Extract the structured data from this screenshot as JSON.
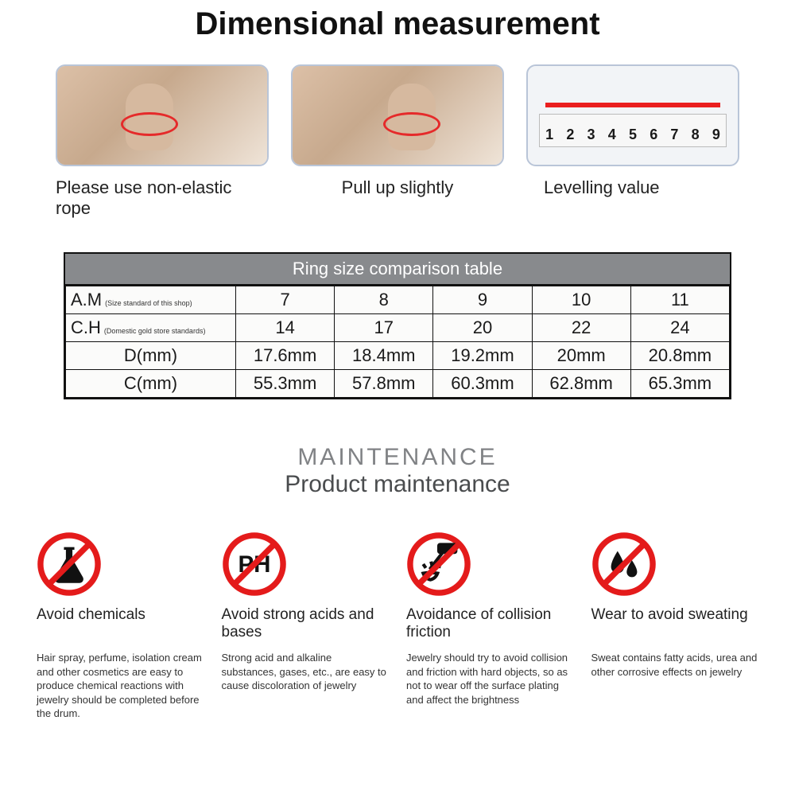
{
  "title": "Dimensional measurement",
  "steps": {
    "panel1_caption": "Please use non-elastic rope",
    "panel2_caption": "Pull up slightly",
    "panel3_caption": "Levelling value",
    "ruler_numbers": [
      "1",
      "2",
      "3",
      "4",
      "5",
      "6",
      "7",
      "8",
      "9"
    ],
    "panel_border_color": "#b9c5d8",
    "red_color": "#ea1f1f"
  },
  "table": {
    "title": "Ring size comparison table",
    "header_bg": "#888a8d",
    "cell_bg": "#fbfbfa",
    "border_color": "#111111",
    "col_width_first": "200px",
    "rows": [
      {
        "label": "A.M",
        "sublabel": "(Size standard of this shop)",
        "cells": [
          "7",
          "8",
          "9",
          "10",
          "11"
        ]
      },
      {
        "label": "C.H",
        "sublabel": "(Domestic gold store standards)",
        "cells": [
          "14",
          "17",
          "20",
          "22",
          "24"
        ]
      },
      {
        "label": "D(mm)",
        "sublabel": "",
        "cells": [
          "17.6mm",
          "18.4mm",
          "19.2mm",
          "20mm",
          "20.8mm"
        ]
      },
      {
        "label": "C(mm)",
        "sublabel": "",
        "cells": [
          "55.3mm",
          "57.8mm",
          "60.3mm",
          "62.8mm",
          "65.3mm"
        ]
      }
    ]
  },
  "maintenance": {
    "heading_small": "MAINTENANCE",
    "heading_large": "Product maintenance",
    "circle_stroke": "#e41b1b",
    "icon_color": "#111111",
    "items": [
      {
        "icon": "flask",
        "title": "Avoid chemicals",
        "body": "Hair spray, perfume, isolation cream and other cosmetics are easy to produce chemical reactions with jewelry should be completed before the drum."
      },
      {
        "icon": "ph",
        "title": "Avoid strong acids and bases",
        "body": "Strong acid and alkaline substances, gases, etc., are easy to cause discoloration of jewelry"
      },
      {
        "icon": "hammer",
        "title": "Avoidance of collision friction",
        "body": "Jewelry should try to avoid collision and friction with hard objects, so as not to wear off the surface plating and affect the brightness"
      },
      {
        "icon": "sweat",
        "title": "Wear to avoid sweating",
        "body": "Sweat contains fatty acids, urea and other corrosive effects on jewelry"
      }
    ]
  }
}
